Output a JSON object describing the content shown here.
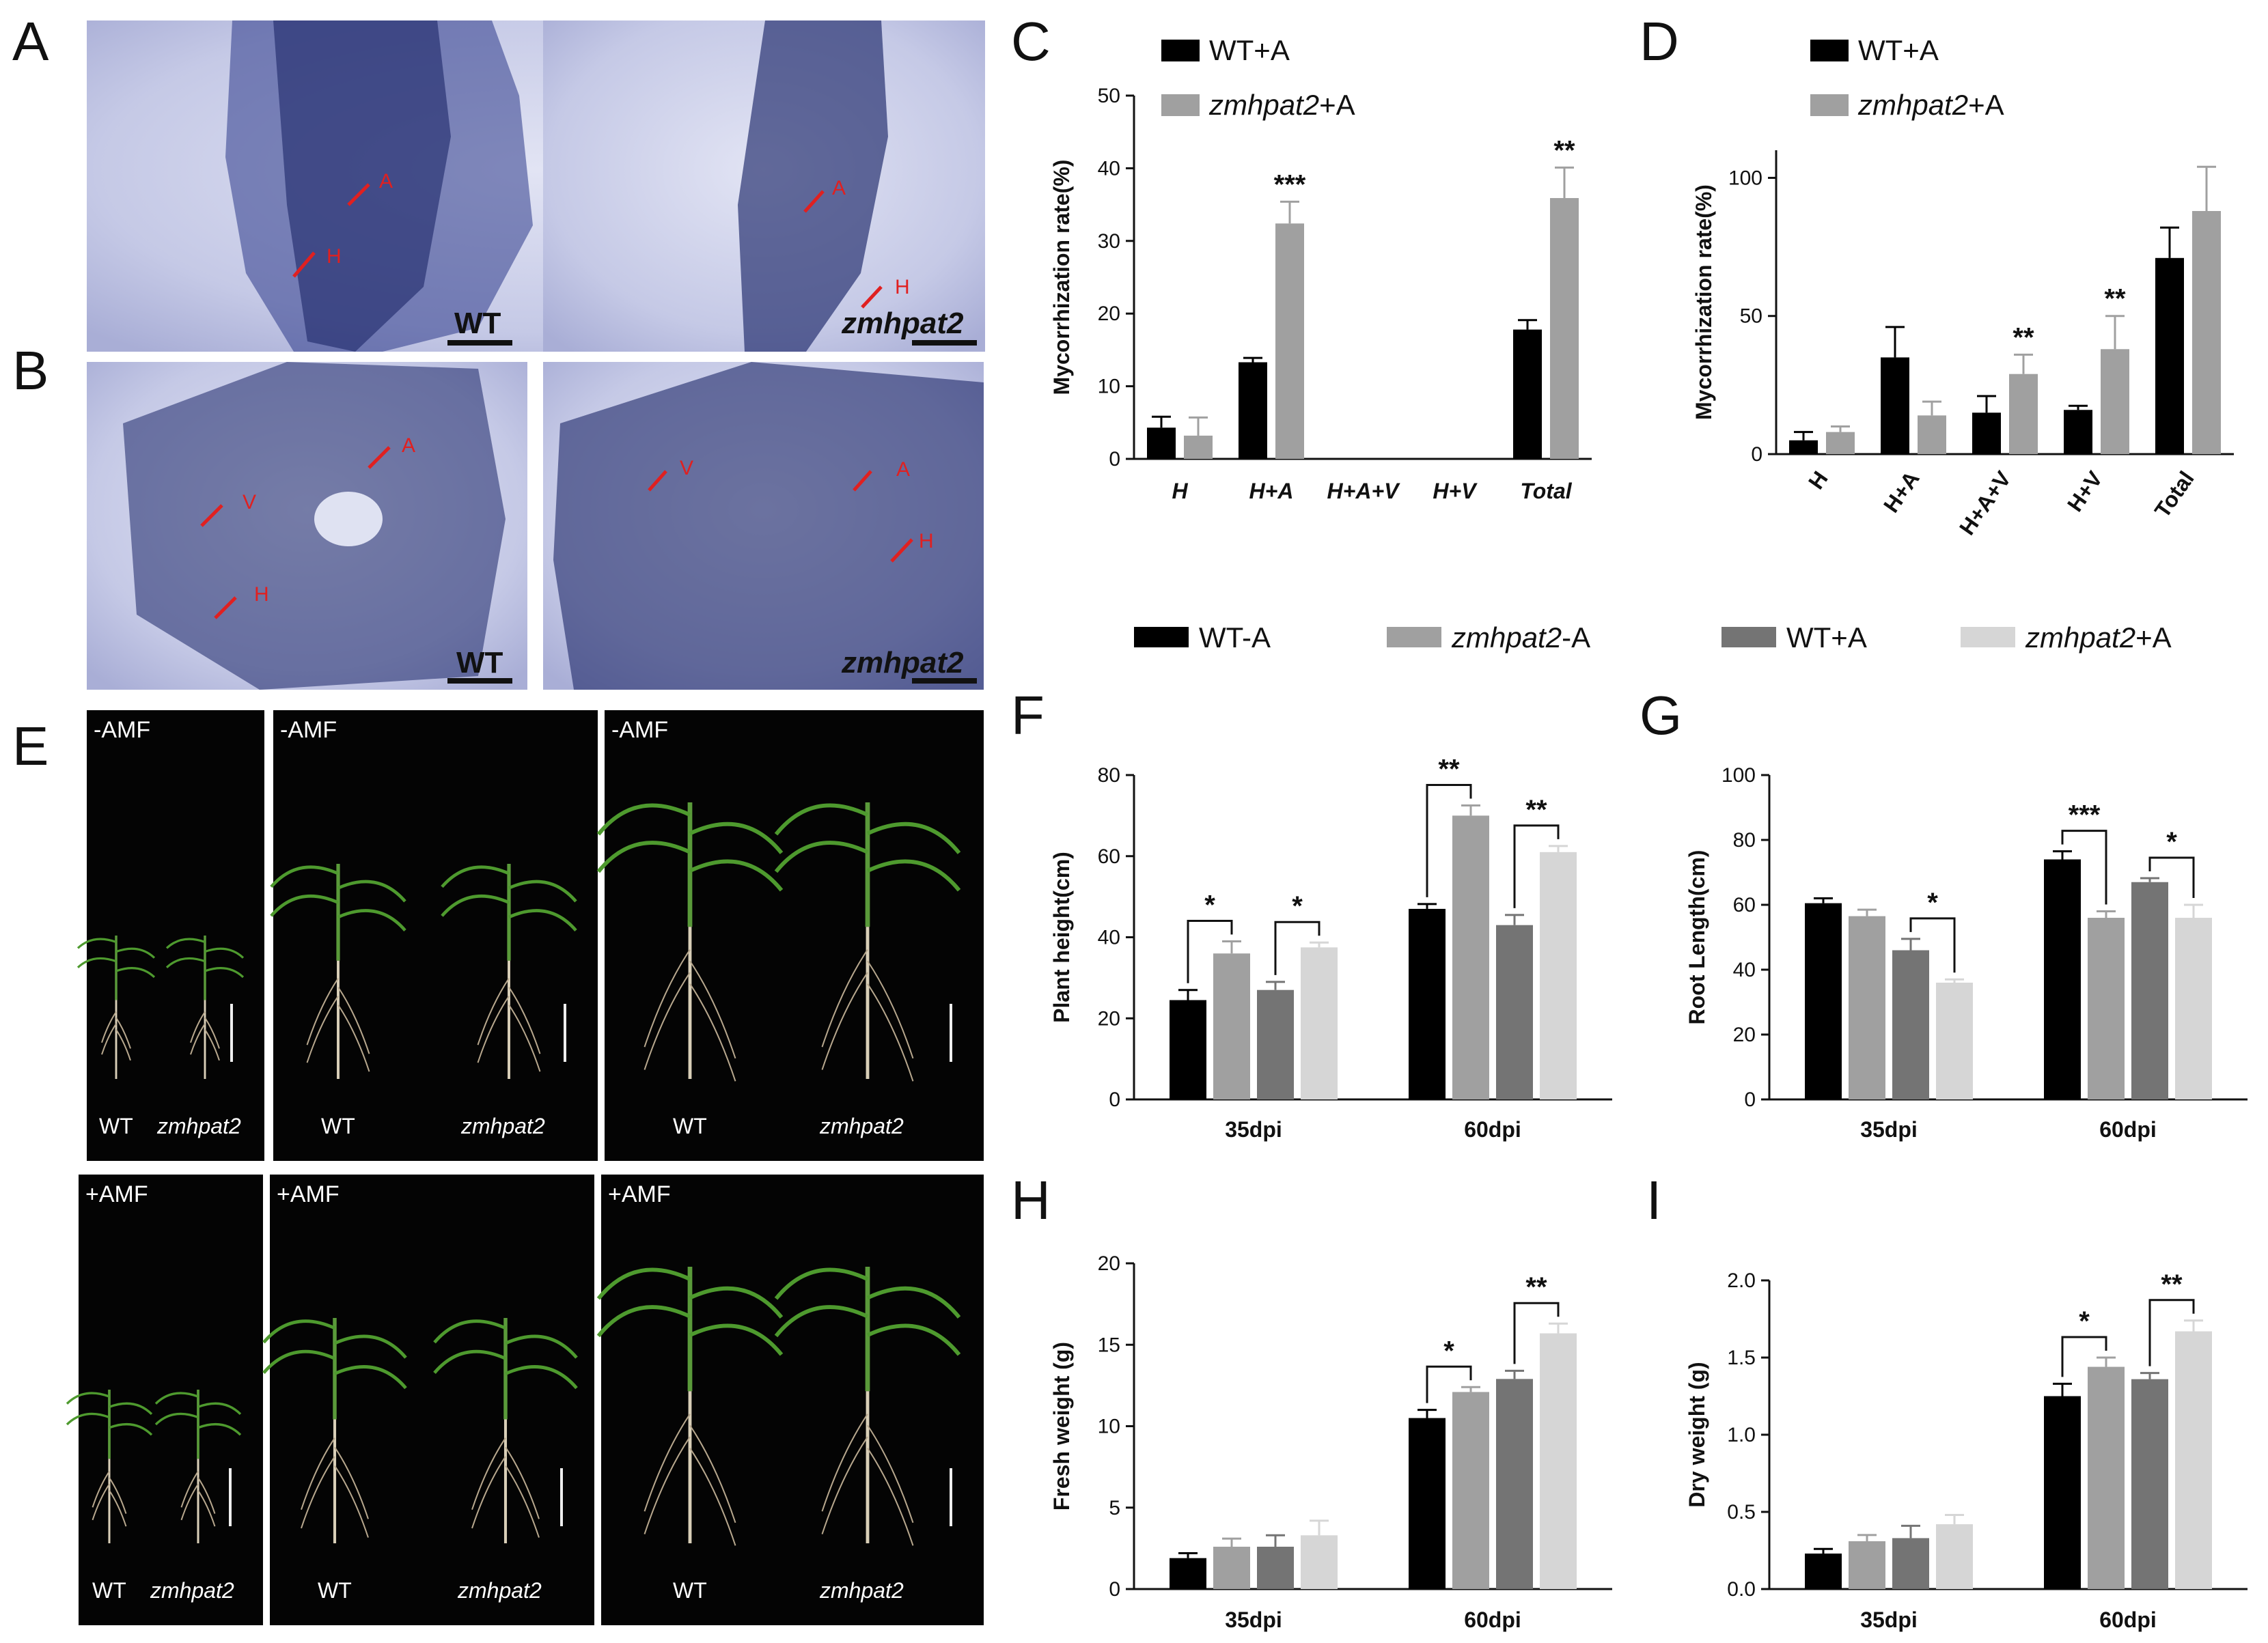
{
  "panel_letters": [
    "A",
    "B",
    "C",
    "D",
    "E",
    "F",
    "G",
    "H",
    "I"
  ],
  "micrographs": [
    {
      "genotype": "WT",
      "arrows": [
        "A",
        "H"
      ]
    },
    {
      "genotype": "zmhpat2",
      "arrows": [
        "A",
        "H"
      ]
    },
    {
      "genotype": "WT",
      "arrows": [
        "A",
        "V",
        "H"
      ]
    },
    {
      "genotype": "zmhpat2",
      "arrows": [
        "V",
        "A",
        "H"
      ]
    }
  ],
  "plant_photos": {
    "top_label": "-AMF",
    "bottom_label": "+AMF",
    "genotypes": [
      "WT",
      "zmhpat2"
    ]
  },
  "legend_top": [
    "WT+A",
    "zmhpat2+A"
  ],
  "legend_bottom": [
    "WT-A",
    "zmhpat2-A",
    "WT+A",
    "zmhpat2+A"
  ],
  "colors": {
    "wt_minus": "#000000",
    "zm_minus": "#a0a0a0",
    "wt_plus": "#747474",
    "zm_plus": "#d6d6d6",
    "top_wt": "#000000",
    "top_zm": "#a0a0a0"
  },
  "chart_data": [
    {
      "id": "C",
      "type": "bar",
      "ylabel": "Mycorrhization rate(%)",
      "ylim": [
        0,
        50
      ],
      "yticks": [
        0,
        10,
        20,
        30,
        40,
        50
      ],
      "categories": [
        "H",
        "H+A",
        "H+A+V",
        "H+V",
        "Total"
      ],
      "series": [
        {
          "name": "WT+A",
          "values": [
            4.3,
            13.3,
            0,
            0,
            17.8
          ],
          "errors": [
            1.5,
            0.6,
            0,
            0,
            1.3
          ]
        },
        {
          "name": "zmhpat2+A",
          "values": [
            3.2,
            32.4,
            0,
            0,
            35.9
          ],
          "errors": [
            2.5,
            3.0,
            0,
            0,
            4.2
          ]
        }
      ],
      "significance": [
        {
          "category": 1,
          "label": "***"
        },
        {
          "category": 4,
          "label": "**"
        }
      ]
    },
    {
      "id": "D",
      "type": "bar",
      "ylabel": "Mycorrhization rate(%)",
      "ylim": [
        0,
        110
      ],
      "yticks": [
        0,
        50,
        100
      ],
      "categories": [
        "H",
        "H+A",
        "H+A+V",
        "H+V",
        "Total"
      ],
      "series": [
        {
          "name": "WT+A",
          "values": [
            5,
            35,
            15,
            16,
            71
          ],
          "errors": [
            3,
            11,
            6,
            1.5,
            11
          ]
        },
        {
          "name": "zmhpat2+A",
          "values": [
            8,
            14,
            29,
            38,
            88
          ],
          "errors": [
            2,
            5,
            7,
            12,
            16
          ]
        }
      ],
      "significance": [
        {
          "category": 2,
          "label": "**"
        },
        {
          "category": 3,
          "label": "**"
        }
      ]
    },
    {
      "id": "F",
      "type": "bar",
      "ylabel": "Plant height(cm)",
      "ylim": [
        0,
        80
      ],
      "yticks": [
        0,
        20,
        40,
        60,
        80
      ],
      "categories": [
        "35dpi",
        "60dpi"
      ],
      "series": [
        {
          "name": "WT-A",
          "values": [
            24.5,
            47
          ],
          "errors": [
            2.5,
            1.2
          ]
        },
        {
          "name": "zmhpat2-A",
          "values": [
            36,
            70
          ],
          "errors": [
            3,
            2.5
          ]
        },
        {
          "name": "WT+A",
          "values": [
            27,
            43
          ],
          "errors": [
            2,
            2.5
          ]
        },
        {
          "name": "zmhpat2+A",
          "values": [
            37.5,
            61
          ],
          "errors": [
            1.2,
            1.5
          ]
        }
      ],
      "brackets": [
        {
          "category": 0,
          "from": 0,
          "to": 1,
          "label": "*"
        },
        {
          "category": 0,
          "from": 2,
          "to": 3,
          "label": "*"
        },
        {
          "category": 1,
          "from": 0,
          "to": 1,
          "label": "**"
        },
        {
          "category": 1,
          "from": 2,
          "to": 3,
          "label": "**"
        }
      ]
    },
    {
      "id": "G",
      "type": "bar",
      "ylabel": "Root Length(cm)",
      "ylim": [
        0,
        100
      ],
      "yticks": [
        0,
        20,
        40,
        60,
        80,
        100
      ],
      "categories": [
        "35dpi",
        "60dpi"
      ],
      "series": [
        {
          "name": "WT-A",
          "values": [
            60.5,
            74
          ],
          "errors": [
            1.5,
            2.5
          ]
        },
        {
          "name": "zmhpat2-A",
          "values": [
            56.5,
            56
          ],
          "errors": [
            2,
            2
          ]
        },
        {
          "name": "WT+A",
          "values": [
            46,
            67
          ],
          "errors": [
            3.5,
            1.2
          ]
        },
        {
          "name": "zmhpat2+A",
          "values": [
            36,
            56
          ],
          "errors": [
            1,
            4
          ]
        }
      ],
      "brackets": [
        {
          "category": 0,
          "from": 2,
          "to": 3,
          "label": "*"
        },
        {
          "category": 1,
          "from": 0,
          "to": 1,
          "label": "***"
        },
        {
          "category": 1,
          "from": 2,
          "to": 3,
          "label": "*"
        }
      ]
    },
    {
      "id": "H",
      "type": "bar",
      "ylabel": "Fresh weight (g)",
      "ylim": [
        0,
        20
      ],
      "yticks": [
        0,
        5,
        10,
        15,
        20
      ],
      "categories": [
        "35dpi",
        "60dpi"
      ],
      "series": [
        {
          "name": "WT-A",
          "values": [
            1.9,
            10.5
          ],
          "errors": [
            0.3,
            0.5
          ]
        },
        {
          "name": "zmhpat2-A",
          "values": [
            2.6,
            12.1
          ],
          "errors": [
            0.5,
            0.3
          ]
        },
        {
          "name": "WT+A",
          "values": [
            2.6,
            12.9
          ],
          "errors": [
            0.7,
            0.5
          ]
        },
        {
          "name": "zmhpat2+A",
          "values": [
            3.3,
            15.7
          ],
          "errors": [
            0.9,
            0.6
          ]
        }
      ],
      "brackets": [
        {
          "category": 1,
          "from": 0,
          "to": 1,
          "label": "*"
        },
        {
          "category": 1,
          "from": 2,
          "to": 3,
          "label": "**"
        }
      ]
    },
    {
      "id": "I",
      "type": "bar",
      "ylabel": "Dry weight (g)",
      "ylim": [
        0,
        2.0
      ],
      "yticks": [
        0.0,
        0.5,
        1.0,
        1.5,
        2.0
      ],
      "ytick_labels": [
        "0.0",
        "0.5",
        "1.0",
        "1.5",
        "2.0"
      ],
      "categories": [
        "35dpi",
        "60dpi"
      ],
      "series": [
        {
          "name": "WT-A",
          "values": [
            0.23,
            1.25
          ],
          "errors": [
            0.03,
            0.08
          ]
        },
        {
          "name": "zmhpat2-A",
          "values": [
            0.31,
            1.44
          ],
          "errors": [
            0.04,
            0.06
          ]
        },
        {
          "name": "WT+A",
          "values": [
            0.33,
            1.36
          ],
          "errors": [
            0.08,
            0.04
          ]
        },
        {
          "name": "zmhpat2+A",
          "values": [
            0.42,
            1.67
          ],
          "errors": [
            0.06,
            0.07
          ]
        }
      ],
      "brackets": [
        {
          "category": 1,
          "from": 0,
          "to": 1,
          "label": "*"
        },
        {
          "category": 1,
          "from": 2,
          "to": 3,
          "label": "**"
        }
      ]
    }
  ]
}
